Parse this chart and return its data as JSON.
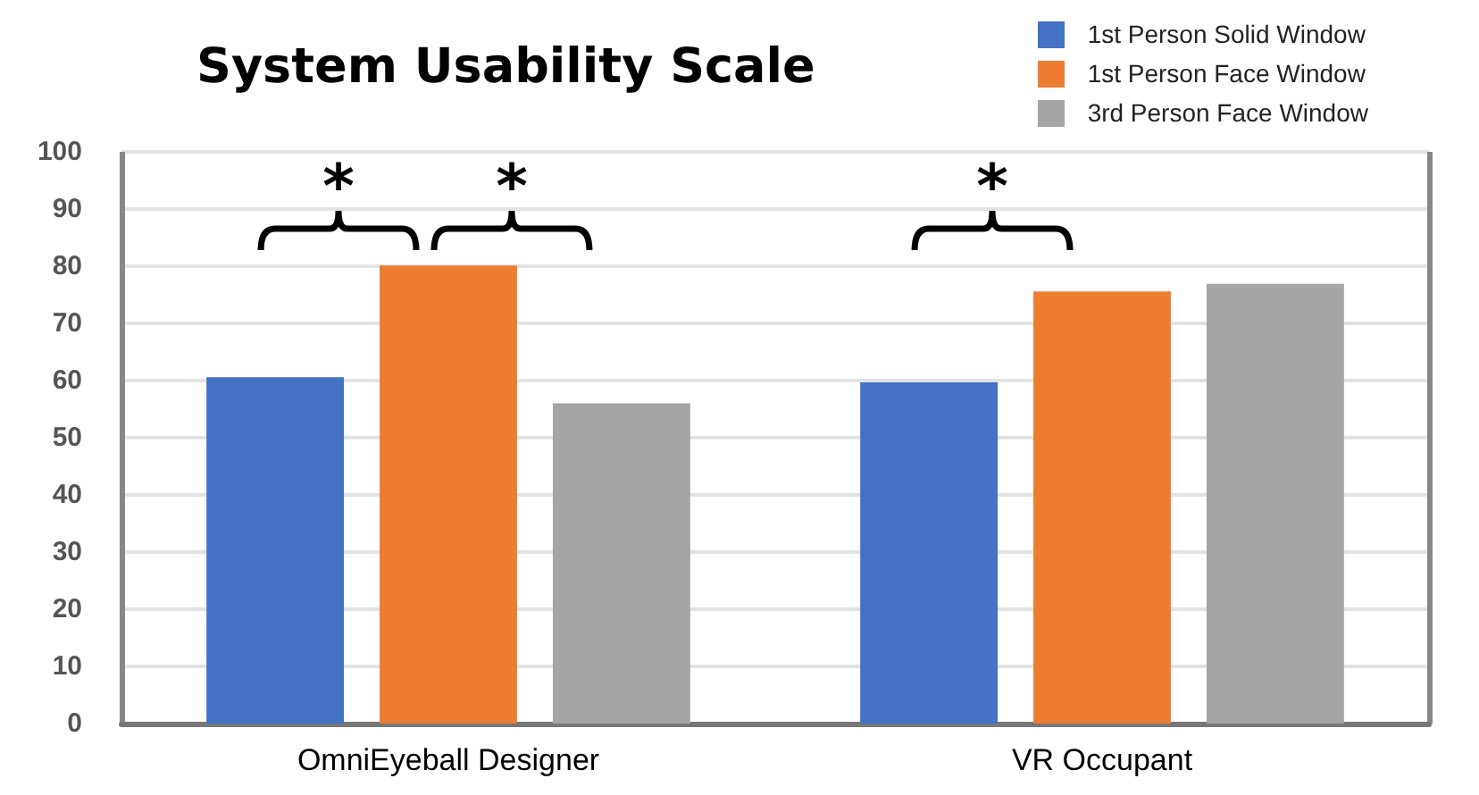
{
  "chart_data": {
    "type": "bar",
    "title": "System Usability Scale",
    "categories": [
      "OmniEyeball Designer",
      "VR Occupant"
    ],
    "series": [
      {
        "name": "1st Person Solid Window",
        "color": "#4472c4",
        "values": [
          60.6,
          59.7
        ]
      },
      {
        "name": "1st Person Face Window",
        "color": "#ed7d31",
        "values": [
          80.1,
          75.6
        ]
      },
      {
        "name": "3rd Person Face Window",
        "color": "#a5a5a5",
        "values": [
          56.0,
          76.9
        ]
      }
    ],
    "ylim": [
      0,
      100
    ],
    "yticks": [
      0,
      10,
      20,
      30,
      40,
      50,
      60,
      70,
      80,
      90,
      100
    ],
    "grid": true,
    "legend": "top right",
    "annotations": [
      "*",
      "*",
      "*"
    ]
  }
}
